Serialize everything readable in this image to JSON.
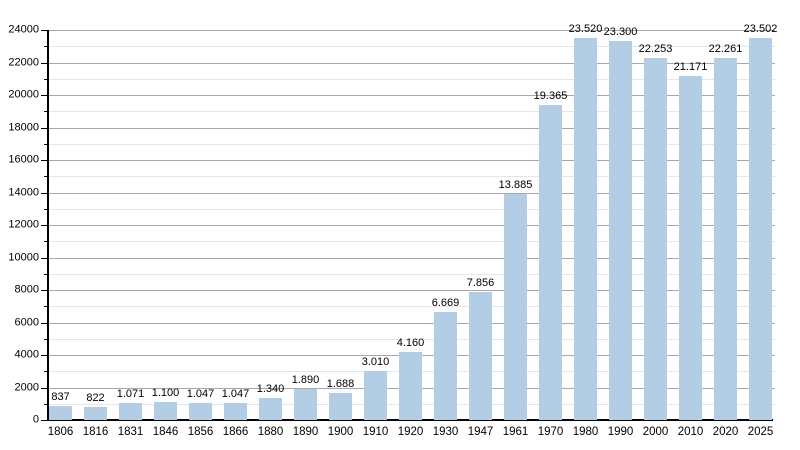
{
  "chart_data": {
    "type": "bar",
    "title": "",
    "xlabel": "",
    "ylabel": "",
    "categories": [
      "1806",
      "1816",
      "1831",
      "1846",
      "1856",
      "1866",
      "1880",
      "1890",
      "1900",
      "1910",
      "1920",
      "1930",
      "1947",
      "1961",
      "1970",
      "1980",
      "1990",
      "2000",
      "2010",
      "2020",
      "2025"
    ],
    "values": [
      837,
      822,
      1071,
      1100,
      1047,
      1047,
      1340,
      1890,
      1688,
      3010,
      4160,
      6669,
      7856,
      13885,
      19365,
      23520,
      23300,
      22253,
      21171,
      22261,
      23502
    ],
    "value_labels": [
      "837",
      "822",
      "1.071",
      "1.100",
      "1.047",
      "1.047",
      "1.340",
      "1.890",
      "1.688",
      "3.010",
      "4.160",
      "6.669",
      "7.856",
      "13.885",
      "19.365",
      "23.520",
      "23.300",
      "22.253",
      "21.171",
      "22.261",
      "23.502"
    ],
    "ylim": [
      0,
      24000
    ],
    "ytick_major_step": 2000,
    "ytick_minor_step": 1000,
    "ytick_labels": [
      "0",
      "2000",
      "4000",
      "6000",
      "8000",
      "10000",
      "12000",
      "14000",
      "16000",
      "18000",
      "20000",
      "22000",
      "24000"
    ],
    "grid": "horizontal, major and minor, on",
    "legend": "none",
    "colors": {
      "bar": "#b3cde5",
      "grid_major": "#a8a8a8",
      "grid_minor": "#e6e6e6",
      "axis": "#000000",
      "text": "#000000",
      "background": "#ffffff"
    }
  }
}
